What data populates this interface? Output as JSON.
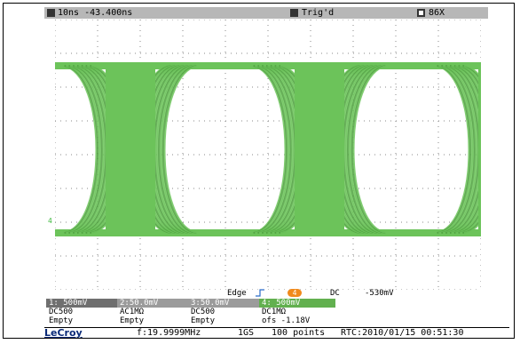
{
  "status_bar": {
    "timebase_label": "10ns -43.400ns",
    "trigger_status": "Trig'd",
    "acq_label": "86X"
  },
  "channel_marker": "4",
  "trigger": {
    "mode_label": "Edge",
    "source_label": "4",
    "coupling": "DC",
    "level": "-530mV"
  },
  "channels": [
    {
      "header": "1: 500mV",
      "line2": "DC500",
      "line3": "Empty"
    },
    {
      "header": "2:50.0mV",
      "line2": "AC1MΩ",
      "line3": "Empty"
    },
    {
      "header": "3:50.0mV",
      "line2": "DC500",
      "line3": "Empty"
    },
    {
      "header": "4: 500mV",
      "line2": "DC1MΩ",
      "line3": "ofs    -1.18V"
    }
  ],
  "footer": {
    "brand": "LeCroy",
    "freq": "f:19.9999MHz",
    "sample_rate": "1GS",
    "points": "100 points",
    "rtc": "RTC:2010/01/15 00:51:30"
  },
  "colors": {
    "trace": "#6cc35a",
    "trace_dark": "#4f9f3f",
    "grid_dot": "#8a8a8a"
  }
}
